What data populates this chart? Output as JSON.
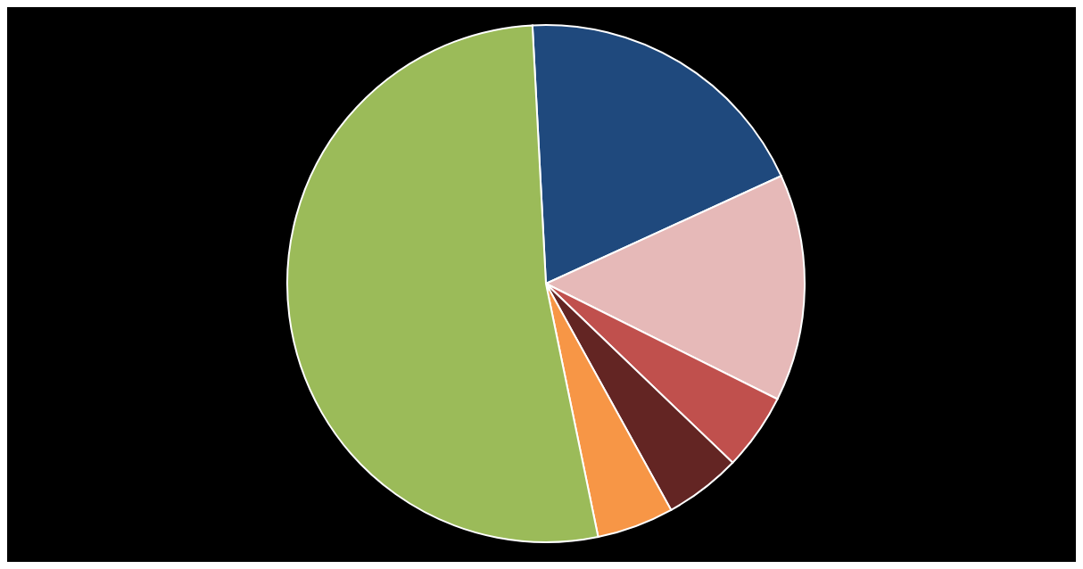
{
  "chart_data": {
    "type": "pie",
    "categories": [
      null,
      null,
      null,
      null,
      null,
      null
    ],
    "values": [
      19.0,
      14.2,
      4.8,
      4.8,
      4.8,
      52.4
    ],
    "colors": [
      "#1f497d",
      "#e6b9b8",
      "#c0504d",
      "#632523",
      "#f79646",
      "#9bbb59"
    ]
  }
}
